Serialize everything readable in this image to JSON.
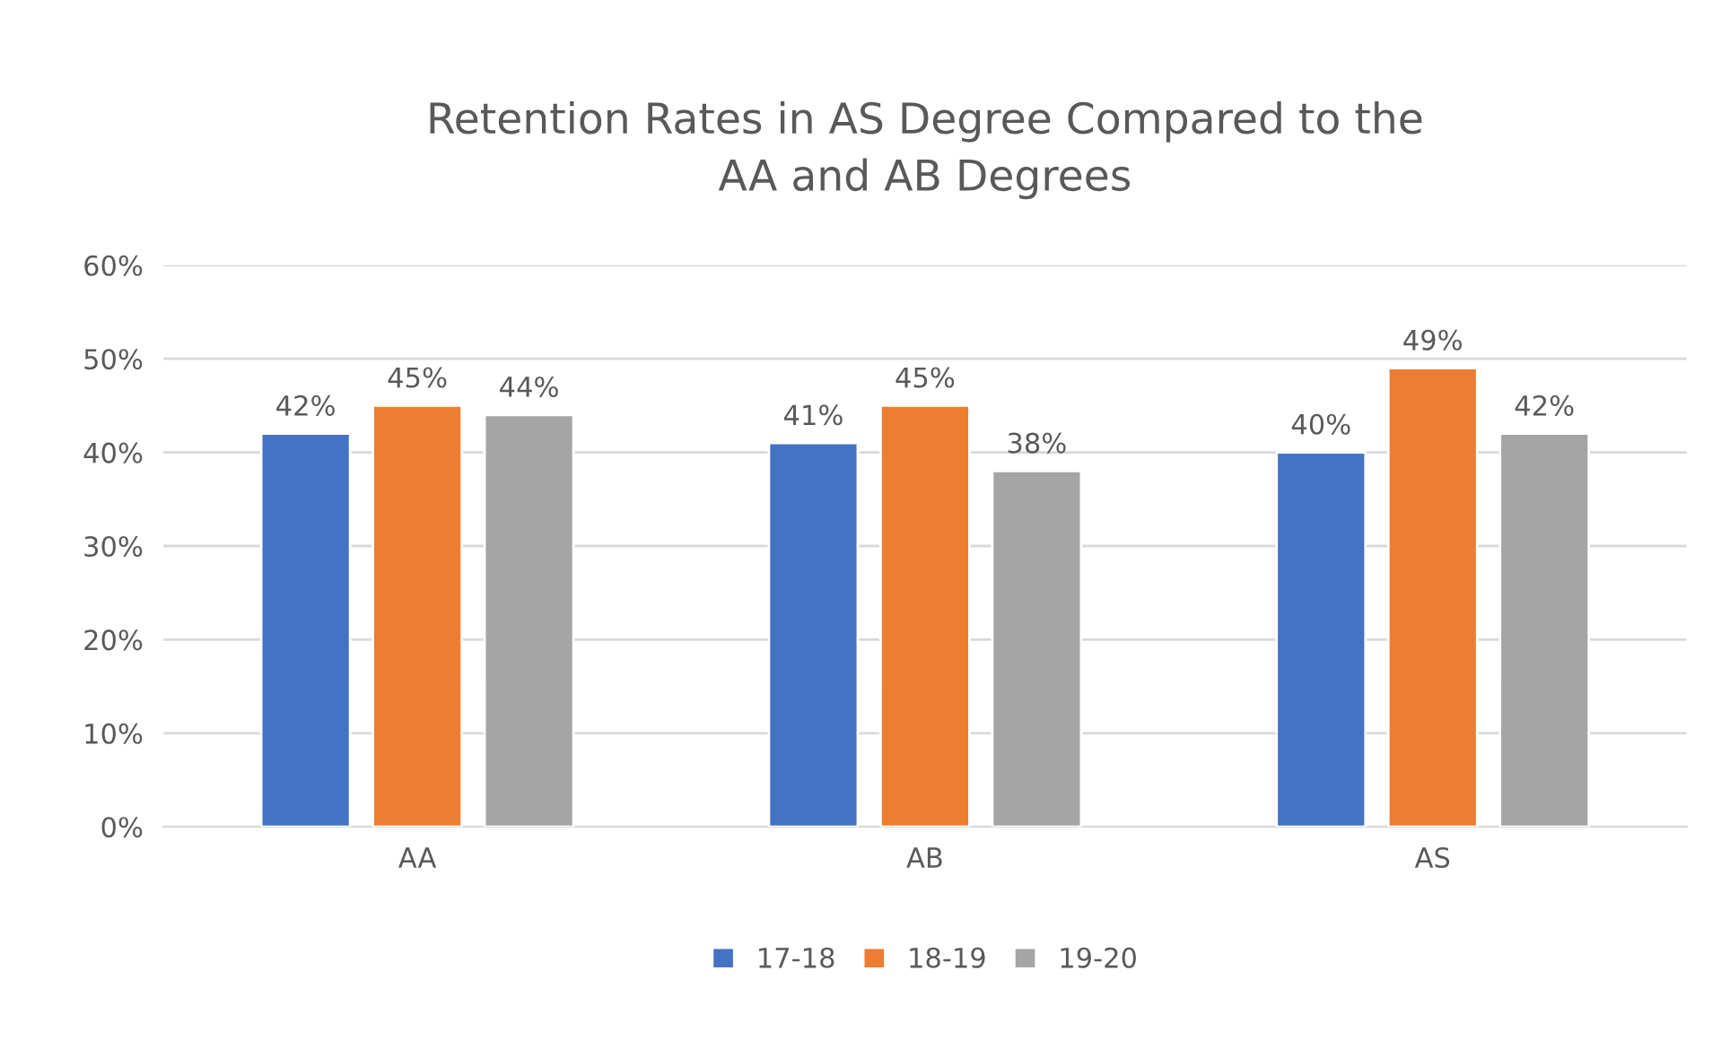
{
  "chart_data": {
    "type": "bar",
    "title": "Retention Rates in AS Degree Compared to the\nAA and AB Degrees",
    "categories": [
      "AA",
      "AB",
      "AS"
    ],
    "series": [
      {
        "name": "17-18",
        "color": "#4472c4",
        "values": [
          42,
          41,
          40
        ],
        "value_labels": [
          "42%",
          "41%",
          "40%"
        ]
      },
      {
        "name": "18-19",
        "color": "#ed7d31",
        "values": [
          45,
          45,
          49
        ],
        "value_labels": [
          "45%",
          "45%",
          "49%"
        ]
      },
      {
        "name": "19-20",
        "color": "#a5a5a5",
        "values": [
          44,
          38,
          42
        ],
        "value_labels": [
          "44%",
          "38%",
          "42%"
        ]
      }
    ],
    "ylim": [
      0,
      60
    ],
    "yticks": [
      {
        "value": 0,
        "label": "0%"
      },
      {
        "value": 10,
        "label": "10%"
      },
      {
        "value": 20,
        "label": "20%"
      },
      {
        "value": 30,
        "label": "30%"
      },
      {
        "value": 40,
        "label": "40%"
      },
      {
        "value": 50,
        "label": "50%"
      },
      {
        "value": 60,
        "label": "60%"
      }
    ],
    "grid": "y",
    "legend": "bottom"
  }
}
